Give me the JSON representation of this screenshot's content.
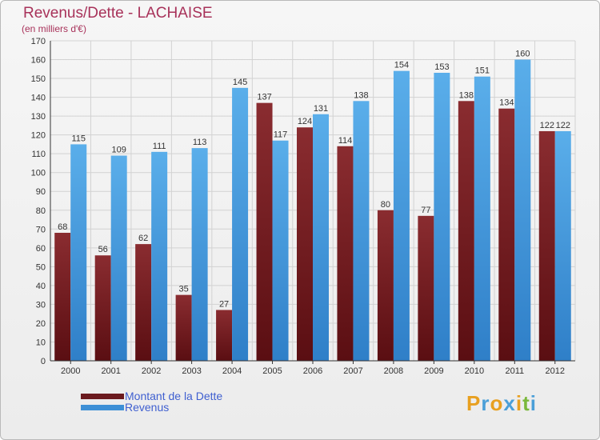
{
  "chart_data": {
    "type": "bar",
    "title": "Revenus/Dette - LACHAISE",
    "subtitle": "(en milliers d'€)",
    "categories": [
      "2000",
      "2001",
      "2002",
      "2003",
      "2004",
      "2005",
      "2006",
      "2007",
      "2008",
      "2009",
      "2010",
      "2011",
      "2012"
    ],
    "series": [
      {
        "name": "Montant de la Dette",
        "color": "#6b1a1e",
        "values": [
          68,
          56,
          62,
          35,
          27,
          137,
          124,
          114,
          80,
          77,
          138,
          134,
          122
        ]
      },
      {
        "name": "Revenus",
        "color": "#3d8fd6",
        "values": [
          115,
          109,
          111,
          113,
          145,
          117,
          131,
          138,
          154,
          153,
          151,
          160,
          122
        ]
      }
    ],
    "ylim": [
      0,
      170
    ],
    "yticks": [
      0,
      10,
      20,
      30,
      40,
      50,
      60,
      70,
      80,
      90,
      100,
      110,
      120,
      130,
      140,
      150,
      160,
      170
    ],
    "grid": true,
    "legend_position": "bottom-left"
  },
  "logo": {
    "text": "Proxiti",
    "colors": [
      "#e8a020",
      "#4a9fd8",
      "#e8a020",
      "#4a9fd8",
      "#e8a020",
      "#7ab83a",
      "#4a9fd8"
    ]
  }
}
